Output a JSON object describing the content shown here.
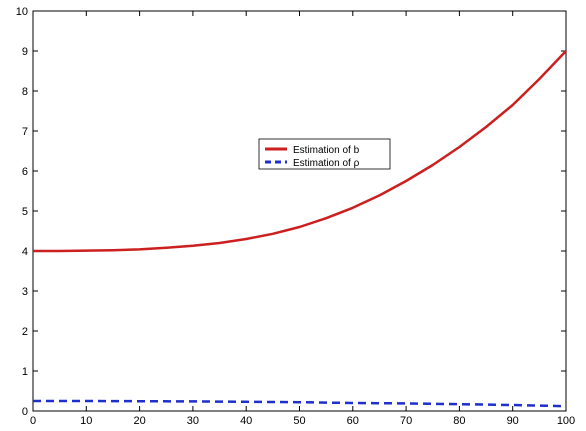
{
  "chart_data": {
    "type": "line",
    "title": "",
    "xlabel": "",
    "ylabel": "",
    "xlim": [
      0,
      100
    ],
    "ylim": [
      0,
      10
    ],
    "x_ticks": [
      0,
      10,
      20,
      30,
      40,
      50,
      60,
      70,
      80,
      90,
      100
    ],
    "y_ticks": [
      0,
      1,
      2,
      3,
      4,
      5,
      6,
      7,
      8,
      9,
      10
    ],
    "grid": false,
    "legend_position": "center",
    "series": [
      {
        "name": "Estimation of b",
        "color": "#cc1f1f",
        "line_style": "solid",
        "x": [
          0,
          5,
          10,
          15,
          20,
          25,
          30,
          35,
          40,
          45,
          50,
          55,
          60,
          65,
          70,
          75,
          80,
          85,
          90,
          95,
          100
        ],
        "y": [
          4.0,
          4.0,
          4.01,
          4.02,
          4.04,
          4.08,
          4.13,
          4.2,
          4.3,
          4.43,
          4.6,
          4.82,
          5.08,
          5.39,
          5.75,
          6.15,
          6.6,
          7.1,
          7.65,
          8.3,
          9.0
        ]
      },
      {
        "name": "Estimation of ρ",
        "color": "#1f2fcc",
        "line_style": "dashed",
        "x": [
          0,
          10,
          20,
          30,
          40,
          50,
          60,
          70,
          80,
          90,
          100
        ],
        "y": [
          0.25,
          0.25,
          0.245,
          0.24,
          0.23,
          0.22,
          0.2,
          0.19,
          0.17,
          0.15,
          0.12
        ]
      }
    ]
  }
}
